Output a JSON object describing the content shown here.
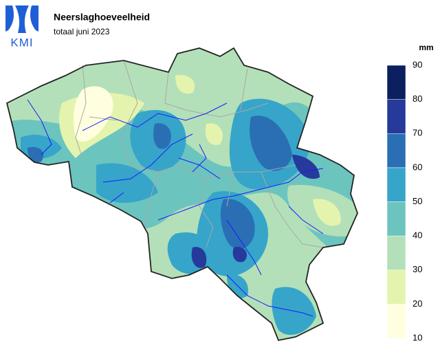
{
  "logo": "KMI",
  "title": "Neerslaghoeveelheid",
  "subtitle": "totaal juni 2023",
  "legend": {
    "unit": "mm",
    "ticks": [
      10,
      20,
      30,
      40,
      50,
      60,
      70,
      80,
      90
    ],
    "colors": [
      "#ffffe0",
      "#e4f4ae",
      "#b3e0b8",
      "#6cc4bf",
      "#36a5c9",
      "#2a6fb4",
      "#263a9b",
      "#0c1f5e"
    ]
  }
}
